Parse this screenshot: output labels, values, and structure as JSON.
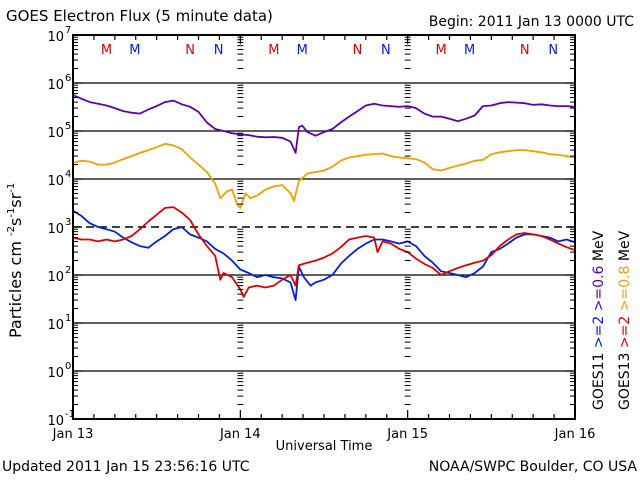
{
  "header": {
    "title": "GOES Electron Flux (5 minute data)",
    "begin": "Begin: 2011 Jan 13 0000 UTC"
  },
  "footer": {
    "updated": "Updated 2011 Jan 15 23:56:16 UTC",
    "credit": "NOAA/SWPC Boulder, CO USA"
  },
  "chart_data": {
    "type": "line",
    "title": "GOES Electron Flux (5 minute data)",
    "xlabel": "Universal Time",
    "ylabel": "Particles cm-2 s-1 sr-1",
    "ylabel_parts": [
      "Particles cm",
      "-2",
      "s",
      "-1",
      "sr",
      "-1"
    ],
    "yscale": "log",
    "ylim": [
      0.1,
      10000000
    ],
    "yticks": [
      {
        "base": "10",
        "exp": "7",
        "value": 10000000
      },
      {
        "base": "10",
        "exp": "6",
        "value": 1000000
      },
      {
        "base": "10",
        "exp": "5",
        "value": 100000
      },
      {
        "base": "10",
        "exp": "4",
        "value": 10000
      },
      {
        "base": "10",
        "exp": "3",
        "value": 1000
      },
      {
        "base": "10",
        "exp": "2",
        "value": 100
      },
      {
        "base": "10",
        "exp": "1",
        "value": 10
      },
      {
        "base": "10",
        "exp": "0",
        "value": 1
      },
      {
        "base": "10",
        "exp": "-1",
        "value": 0.1
      }
    ],
    "threshold_line": 1000,
    "xlim_days": [
      0,
      3
    ],
    "xticks": [
      {
        "label": "Jan 13",
        "day": 0
      },
      {
        "label": "Jan 14",
        "day": 1
      },
      {
        "label": "Jan 15",
        "day": 2
      },
      {
        "label": "Jan 16",
        "day": 3
      }
    ],
    "local_time_markers": [
      {
        "label": "M",
        "color": "#e00000",
        "day": 0.2
      },
      {
        "label": "M",
        "color": "#0020e0",
        "day": 0.37
      },
      {
        "label": "N",
        "color": "#e00000",
        "day": 0.7
      },
      {
        "label": "N",
        "color": "#0020e0",
        "day": 0.87
      },
      {
        "label": "M",
        "color": "#e00000",
        "day": 1.2
      },
      {
        "label": "M",
        "color": "#0020e0",
        "day": 1.37
      },
      {
        "label": "N",
        "color": "#e00000",
        "day": 1.7
      },
      {
        "label": "N",
        "color": "#0020e0",
        "day": 1.87
      },
      {
        "label": "M",
        "color": "#e00000",
        "day": 2.2
      },
      {
        "label": "M",
        "color": "#0020e0",
        "day": 2.37
      },
      {
        "label": "N",
        "color": "#e00000",
        "day": 2.7
      },
      {
        "label": "N",
        "color": "#0020e0",
        "day": 2.87
      }
    ],
    "legend": [
      {
        "label": "GOES11",
        "color": "#000000"
      },
      {
        "label": ">=2",
        "color": "#0020e0"
      },
      {
        "label": ">=0.6",
        "color": "#6000b0"
      },
      {
        "label": "MeV",
        "color": "#000000"
      },
      {
        "label": "GOES13",
        "color": "#000000"
      },
      {
        "label": ">=2",
        "color": "#e00000"
      },
      {
        "label": ">=0.8",
        "color": "#f0a000"
      },
      {
        "label": "MeV",
        "color": "#000000"
      }
    ],
    "legend_placement": "right-outside",
    "series": [
      {
        "name": "GOES11 >=0.6 MeV",
        "color": "#6000b0",
        "x": [
          0,
          0.05,
          0.1,
          0.15,
          0.2,
          0.25,
          0.3,
          0.35,
          0.4,
          0.45,
          0.5,
          0.55,
          0.6,
          0.65,
          0.7,
          0.75,
          0.8,
          0.85,
          0.9,
          0.95,
          1.0,
          1.05,
          1.1,
          1.15,
          1.2,
          1.25,
          1.3,
          1.33,
          1.35,
          1.37,
          1.4,
          1.45,
          1.5,
          1.55,
          1.6,
          1.65,
          1.7,
          1.75,
          1.8,
          1.85,
          1.9,
          1.95,
          2.0,
          2.05,
          2.1,
          2.15,
          2.2,
          2.25,
          2.3,
          2.35,
          2.4,
          2.45,
          2.5,
          2.55,
          2.6,
          2.65,
          2.7,
          2.75,
          2.8,
          2.85,
          2.9,
          2.95,
          3.0
        ],
        "values": [
          560000,
          470000,
          400000,
          370000,
          340000,
          300000,
          260000,
          240000,
          230000,
          280000,
          330000,
          400000,
          430000,
          360000,
          320000,
          250000,
          150000,
          110000,
          100000,
          90000,
          85000,
          82000,
          76000,
          74000,
          75000,
          72000,
          60000,
          35000,
          120000,
          130000,
          95000,
          80000,
          95000,
          110000,
          150000,
          200000,
          260000,
          340000,
          370000,
          340000,
          330000,
          320000,
          330000,
          300000,
          230000,
          200000,
          200000,
          180000,
          160000,
          180000,
          210000,
          330000,
          340000,
          380000,
          400000,
          390000,
          380000,
          350000,
          360000,
          340000,
          330000,
          330000,
          320000
        ]
      },
      {
        "name": "GOES13 >=0.8 MeV",
        "color": "#f0a000",
        "x": [
          0,
          0.05,
          0.1,
          0.15,
          0.2,
          0.25,
          0.3,
          0.35,
          0.4,
          0.45,
          0.5,
          0.55,
          0.6,
          0.65,
          0.7,
          0.75,
          0.8,
          0.85,
          0.88,
          0.92,
          0.95,
          0.98,
          1.0,
          1.03,
          1.06,
          1.1,
          1.15,
          1.2,
          1.25,
          1.3,
          1.32,
          1.35,
          1.4,
          1.45,
          1.5,
          1.55,
          1.6,
          1.65,
          1.7,
          1.75,
          1.8,
          1.85,
          1.9,
          1.95,
          2.0,
          2.05,
          2.1,
          2.15,
          2.2,
          2.25,
          2.3,
          2.35,
          2.4,
          2.45,
          2.5,
          2.55,
          2.6,
          2.65,
          2.7,
          2.75,
          2.8,
          2.85,
          2.9,
          2.95,
          3.0
        ],
        "values": [
          22000,
          24000,
          23000,
          20000,
          20000,
          22000,
          26000,
          30000,
          35000,
          40000,
          46000,
          54000,
          50000,
          42000,
          28000,
          20000,
          14000,
          8000,
          4000,
          5500,
          6000,
          3000,
          2500,
          5000,
          4000,
          4500,
          6000,
          7000,
          7500,
          5000,
          3500,
          9000,
          13000,
          14000,
          15000,
          18000,
          24000,
          28000,
          30000,
          32000,
          33000,
          34000,
          30000,
          28000,
          27000,
          26000,
          22000,
          16000,
          15000,
          17000,
          19000,
          21000,
          24000,
          25000,
          33000,
          36000,
          38000,
          40000,
          40000,
          38000,
          36000,
          33000,
          32000,
          30000,
          28000
        ]
      },
      {
        "name": "GOES11 >=2 MeV",
        "color": "#0020e0",
        "x": [
          0,
          0.05,
          0.1,
          0.15,
          0.2,
          0.25,
          0.3,
          0.35,
          0.4,
          0.45,
          0.5,
          0.55,
          0.6,
          0.65,
          0.7,
          0.75,
          0.8,
          0.85,
          0.9,
          0.95,
          1.0,
          1.05,
          1.1,
          1.15,
          1.2,
          1.25,
          1.3,
          1.33,
          1.35,
          1.38,
          1.42,
          1.45,
          1.5,
          1.55,
          1.6,
          1.65,
          1.7,
          1.75,
          1.8,
          1.85,
          1.9,
          1.95,
          2.0,
          2.05,
          2.1,
          2.15,
          2.2,
          2.25,
          2.3,
          2.35,
          2.4,
          2.45,
          2.5,
          2.55,
          2.6,
          2.65,
          2.7,
          2.75,
          2.8,
          2.85,
          2.9,
          2.95,
          3.0
        ],
        "values": [
          2200,
          1700,
          1200,
          1000,
          900,
          800,
          600,
          480,
          400,
          370,
          500,
          650,
          900,
          1000,
          700,
          600,
          500,
          350,
          280,
          200,
          130,
          110,
          90,
          100,
          90,
          85,
          70,
          30,
          150,
          90,
          60,
          70,
          80,
          100,
          170,
          250,
          350,
          450,
          550,
          550,
          500,
          450,
          500,
          400,
          250,
          180,
          120,
          110,
          100,
          90,
          110,
          150,
          300,
          350,
          450,
          600,
          700,
          700,
          650,
          600,
          500,
          550,
          480
        ]
      },
      {
        "name": "GOES13 >=2 MeV",
        "color": "#e00000",
        "x": [
          0,
          0.05,
          0.1,
          0.15,
          0.2,
          0.25,
          0.3,
          0.35,
          0.4,
          0.45,
          0.5,
          0.55,
          0.6,
          0.65,
          0.7,
          0.75,
          0.8,
          0.85,
          0.88,
          0.9,
          0.95,
          1.0,
          1.02,
          1.05,
          1.1,
          1.15,
          1.2,
          1.25,
          1.3,
          1.33,
          1.35,
          1.4,
          1.45,
          1.5,
          1.55,
          1.6,
          1.65,
          1.7,
          1.75,
          1.8,
          1.82,
          1.85,
          1.9,
          1.95,
          2.0,
          2.05,
          2.1,
          2.15,
          2.2,
          2.25,
          2.3,
          2.35,
          2.4,
          2.45,
          2.5,
          2.55,
          2.6,
          2.65,
          2.7,
          2.75,
          2.8,
          2.85,
          2.9,
          2.95,
          3.0
        ],
        "values": [
          600,
          550,
          550,
          500,
          550,
          500,
          550,
          650,
          900,
          1300,
          1800,
          2500,
          2600,
          2000,
          1400,
          700,
          400,
          250,
          80,
          110,
          90,
          50,
          35,
          55,
          60,
          55,
          60,
          80,
          100,
          60,
          160,
          180,
          200,
          230,
          280,
          380,
          550,
          600,
          650,
          600,
          300,
          500,
          450,
          350,
          300,
          220,
          170,
          140,
          100,
          120,
          140,
          160,
          180,
          200,
          260,
          400,
          550,
          700,
          750,
          700,
          650,
          550,
          450,
          380,
          330
        ]
      }
    ]
  }
}
